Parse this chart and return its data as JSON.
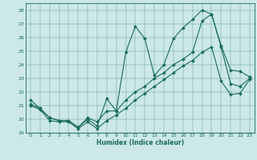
{
  "xlabel": "Humidex (Indice chaleur)",
  "xlim": [
    -0.5,
    23.5
  ],
  "ylim": [
    19,
    28.5
  ],
  "yticks": [
    19,
    20,
    21,
    22,
    23,
    24,
    25,
    26,
    27,
    28
  ],
  "xticks": [
    0,
    1,
    2,
    3,
    4,
    5,
    6,
    7,
    8,
    9,
    10,
    11,
    12,
    13,
    14,
    15,
    16,
    17,
    18,
    19,
    20,
    21,
    22,
    23
  ],
  "bg_color": "#cce8e8",
  "line_color": "#1a6b5a",
  "line1_y": [
    21.4,
    20.8,
    20.1,
    19.9,
    19.9,
    19.4,
    20.0,
    19.5,
    21.5,
    20.6,
    24.9,
    26.8,
    25.9,
    23.2,
    24.0,
    25.9,
    26.7,
    27.3,
    28.0,
    27.7,
    25.4,
    23.6,
    23.5,
    23.1
  ],
  "line2_y": [
    21.1,
    20.8,
    20.1,
    19.9,
    19.9,
    19.4,
    20.1,
    19.8,
    20.6,
    20.6,
    21.4,
    22.0,
    22.4,
    23.0,
    23.4,
    24.0,
    24.4,
    24.9,
    27.2,
    27.7,
    25.3,
    22.6,
    22.4,
    23.0
  ],
  "line3_y": [
    21.0,
    20.7,
    19.9,
    19.8,
    19.8,
    19.3,
    19.8,
    19.3,
    19.9,
    20.3,
    20.8,
    21.4,
    21.9,
    22.4,
    22.9,
    23.4,
    23.9,
    24.3,
    24.9,
    25.3,
    22.8,
    21.8,
    21.9,
    22.9
  ]
}
